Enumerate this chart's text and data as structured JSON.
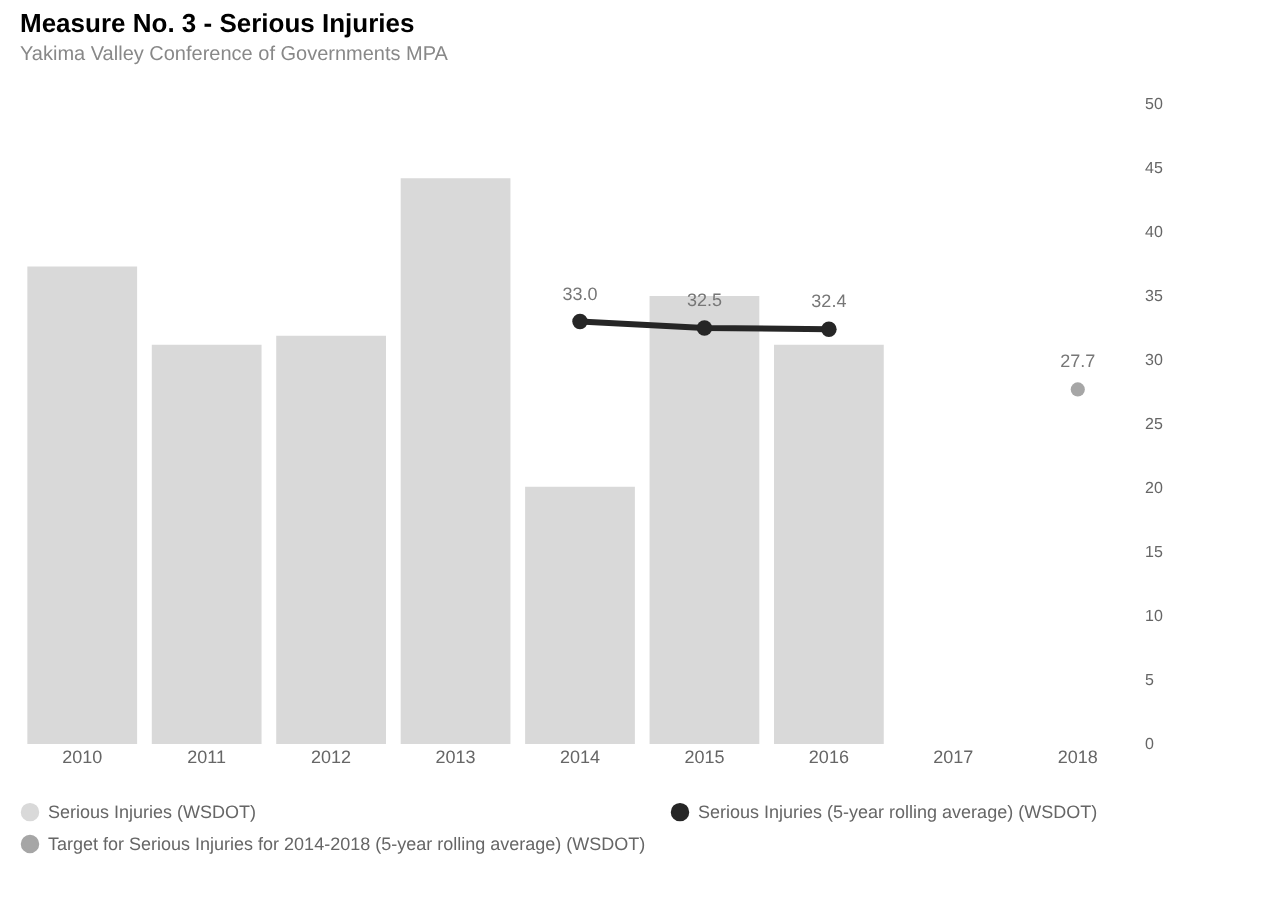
{
  "chart_data": {
    "type": "bar",
    "title": "Measure No. 3 - Serious Injuries",
    "subtitle": "Yakima Valley Conference of Governments MPA",
    "categories": [
      "2010",
      "2011",
      "2012",
      "2013",
      "2014",
      "2015",
      "2016",
      "2017",
      "2018"
    ],
    "series": [
      {
        "name": "Serious Injuries (WSDOT)",
        "color": "#d9d9d9",
        "values": [
          37.3,
          31.2,
          31.9,
          44.2,
          20.1,
          35.0,
          31.2,
          null,
          null
        ]
      },
      {
        "name": "Serious Injuries (5-year rolling average) (WSDOT)",
        "type": "line",
        "color": "#262626",
        "marker": "circle",
        "values": [
          null,
          null,
          null,
          null,
          33.0,
          32.5,
          32.4,
          null,
          null
        ],
        "value_labels": [
          null,
          null,
          null,
          null,
          "33.0",
          "32.5",
          "32.4",
          null,
          null
        ]
      },
      {
        "name": "Target for Serious Injuries for 2014-2018 (5-year rolling average) (WSDOT)",
        "type": "scatter",
        "color": "#a6a6a6",
        "values": [
          null,
          null,
          null,
          null,
          null,
          null,
          null,
          null,
          27.7
        ],
        "value_labels": [
          null,
          null,
          null,
          null,
          null,
          null,
          null,
          null,
          "27.7"
        ]
      }
    ],
    "ylim": [
      0,
      50
    ],
    "yticks": [
      0,
      5,
      10,
      15,
      20,
      25,
      30,
      35,
      40,
      45,
      50
    ],
    "legend": "bottom"
  }
}
